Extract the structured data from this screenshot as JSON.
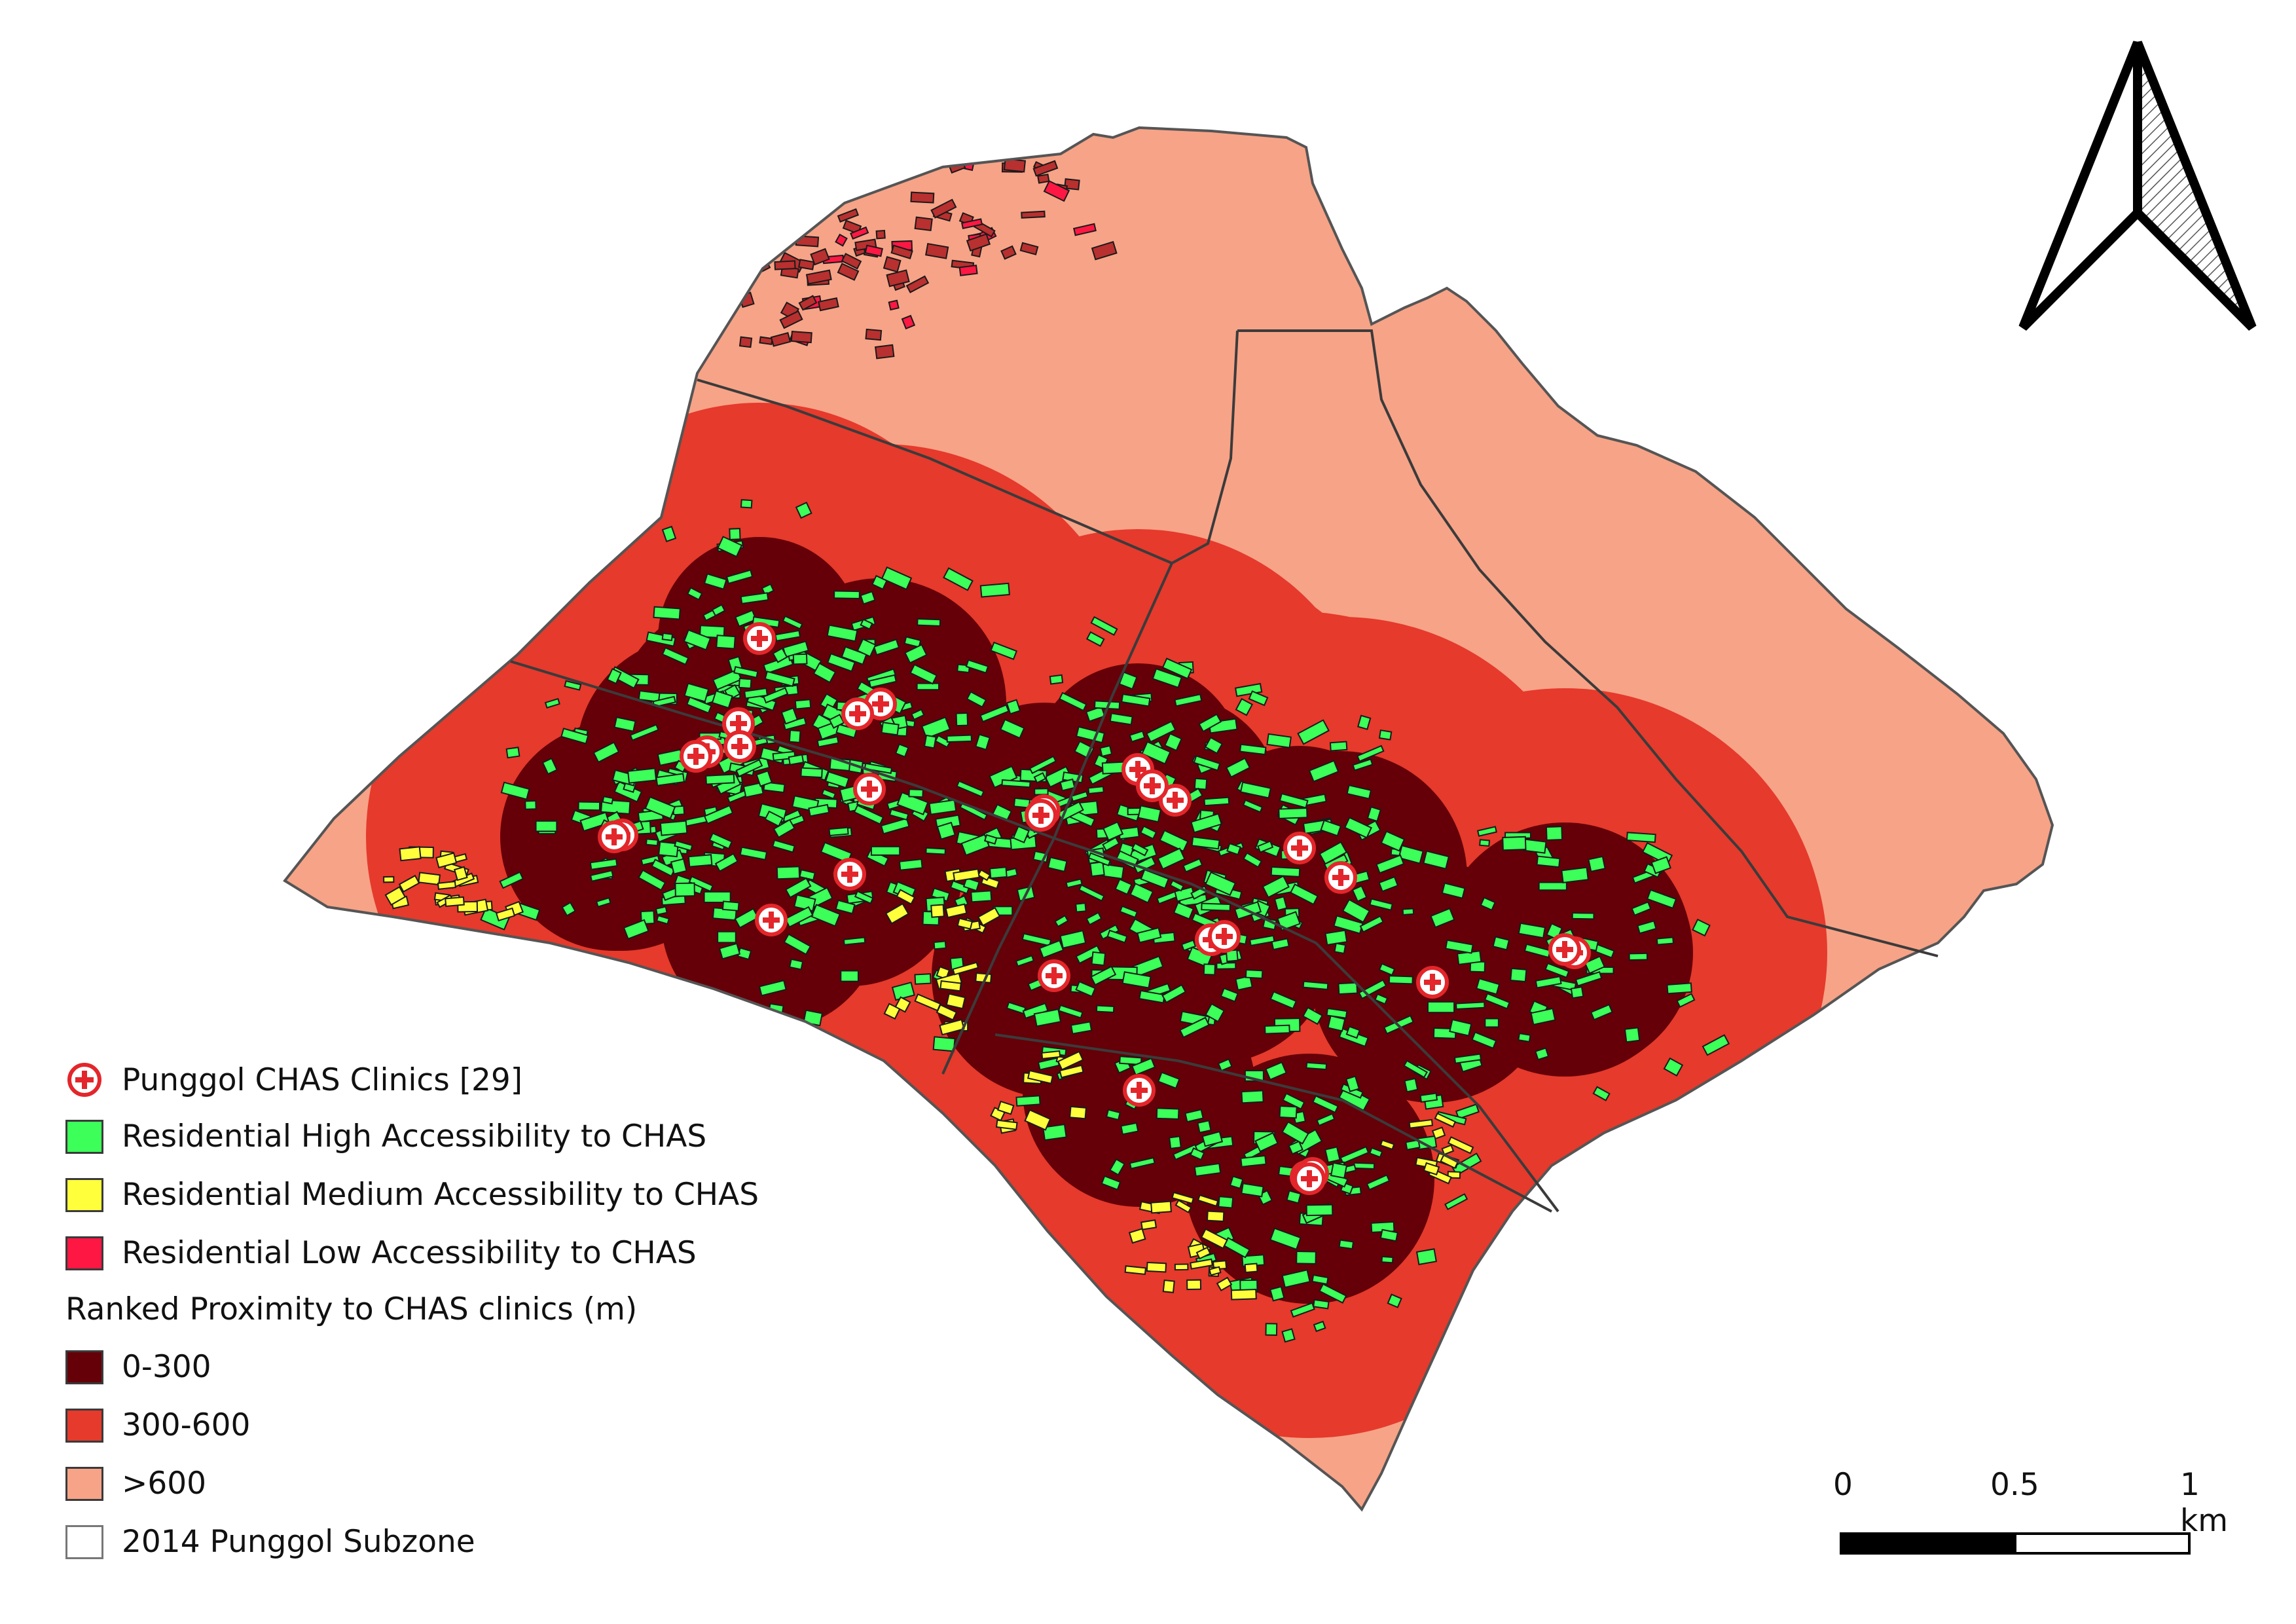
{
  "legend": {
    "clinics_label": "Punggol CHAS Clinics [29]",
    "high_label": "Residential High Accessibility to CHAS",
    "medium_label": "Residential Medium Accessibility to CHAS",
    "low_label": "Residential Low Accessibility to CHAS",
    "proximity_heading": "Ranked Proximity to CHAS clinics (m)",
    "band_0_300": "0-300",
    "band_300_600": "300-600",
    "band_600_plus": ">600",
    "subzone_label": "2014 Punggol Subzone"
  },
  "scalebar": {
    "tick_0": "0",
    "tick_mid": "0.5",
    "tick_end": "1 km"
  },
  "colors": {
    "clinic_red": "#e3262b",
    "high_green": "#3cff5a",
    "medium_yellow": "#ffff3c",
    "low_red": "#ff1744",
    "band_0_300": "#650008",
    "band_300_600": "#e53a2c",
    "band_600_plus": "#f7a387",
    "subzone_outline": "#555555"
  },
  "icons": {
    "clinic": "red-cross-circle-icon",
    "north": "north-arrow-icon"
  },
  "map": {
    "clinic_count": 29
  }
}
